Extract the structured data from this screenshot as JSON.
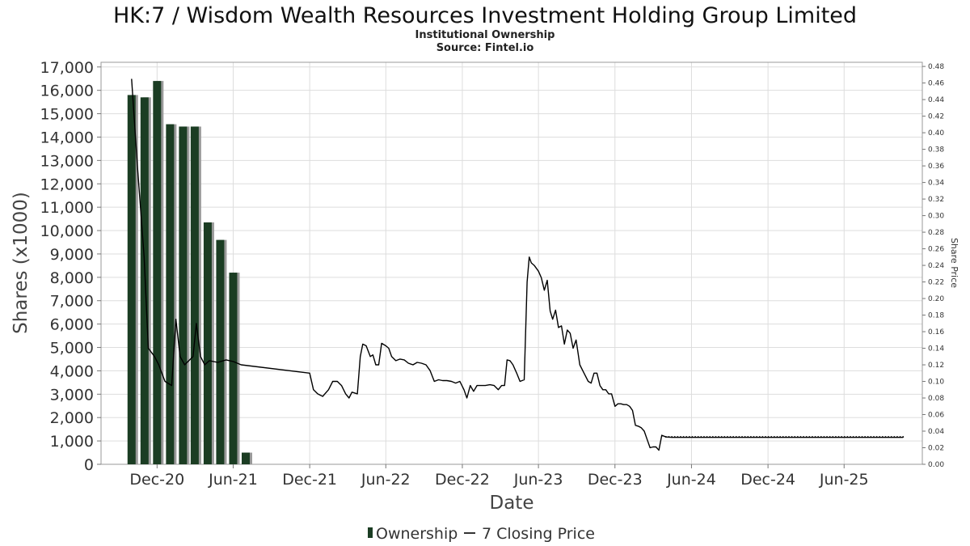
{
  "chart_data": {
    "type": "bar+line",
    "title": "HK:7 / Wisdom Wealth Resources Investment Holding Group Limited",
    "subtitle_lines": [
      "Institutional Ownership",
      "Source: Fintel.io"
    ],
    "xlabel": "Date",
    "ylabel_left": "Shares (x1000)",
    "ylabel_right": "Share Price",
    "x_range": [
      "2020-07-20",
      "2025-12-05"
    ],
    "ylim_left": [
      0,
      17200
    ],
    "ylim_right": [
      0,
      0.485
    ],
    "x_ticks": [
      {
        "date": "2020-12-01",
        "label": "Dec-20"
      },
      {
        "date": "2021-06-01",
        "label": "Jun-21"
      },
      {
        "date": "2021-12-01",
        "label": "Dec-21"
      },
      {
        "date": "2022-06-01",
        "label": "Jun-22"
      },
      {
        "date": "2022-12-01",
        "label": "Dec-22"
      },
      {
        "date": "2023-06-01",
        "label": "Jun-23"
      },
      {
        "date": "2023-12-01",
        "label": "Dec-23"
      },
      {
        "date": "2024-06-01",
        "label": "Jun-24"
      },
      {
        "date": "2024-12-01",
        "label": "Dec-24"
      },
      {
        "date": "2025-06-01",
        "label": "Jun-25"
      }
    ],
    "y_ticks_left": [
      "0",
      "1,000",
      "2,000",
      "3,000",
      "4,000",
      "5,000",
      "6,000",
      "7,000",
      "8,000",
      "9,000",
      "10,000",
      "11,000",
      "12,000",
      "13,000",
      "14,000",
      "15,000",
      "16,000",
      "17,000"
    ],
    "y_ticks_right": [
      "0.00",
      "0.02",
      "0.04",
      "0.06",
      "0.08",
      "0.10",
      "0.12",
      "0.14",
      "0.16",
      "0.18",
      "0.20",
      "0.22",
      "0.24",
      "0.26",
      "0.28",
      "0.30",
      "0.32",
      "0.34",
      "0.36",
      "0.38",
      "0.40",
      "0.42",
      "0.44",
      "0.46",
      "0.48"
    ],
    "grid": true,
    "legend": {
      "placement": "bottom-center",
      "entries": [
        {
          "label": "Ownership",
          "type": "bar",
          "color": "#1b3d23"
        },
        {
          "label": "7 Closing Price",
          "type": "line",
          "color": "#000000"
        }
      ]
    },
    "series": [
      {
        "name": "Ownership",
        "type": "bar",
        "color": "#1b3d23",
        "shadow_color": "#9a9a9a",
        "points": [
          {
            "x": "2020-10-01",
            "y": 15800
          },
          {
            "x": "2020-11-01",
            "y": 15700
          },
          {
            "x": "2020-12-01",
            "y": 16400
          },
          {
            "x": "2021-01-01",
            "y": 14550
          },
          {
            "x": "2021-02-01",
            "y": 14450
          },
          {
            "x": "2021-03-01",
            "y": 14450
          },
          {
            "x": "2021-04-01",
            "y": 10350
          },
          {
            "x": "2021-05-01",
            "y": 9600
          },
          {
            "x": "2021-06-01",
            "y": 8200
          },
          {
            "x": "2021-07-01",
            "y": 500
          }
        ]
      },
      {
        "name": "7 Closing Price",
        "type": "line",
        "color": "#000000",
        "points": [
          [
            "2020-10-01",
            0.465
          ],
          [
            "2020-10-15",
            0.36
          ],
          [
            "2020-10-31",
            0.25
          ],
          [
            "2020-11-10",
            0.14
          ],
          [
            "2020-11-25",
            0.13
          ],
          [
            "2020-12-05",
            0.12
          ],
          [
            "2020-12-20",
            0.1
          ],
          [
            "2021-01-05",
            0.095
          ],
          [
            "2021-01-15",
            0.175
          ],
          [
            "2021-01-25",
            0.13
          ],
          [
            "2021-02-05",
            0.12
          ],
          [
            "2021-02-25",
            0.13
          ],
          [
            "2021-03-05",
            0.17
          ],
          [
            "2021-03-15",
            0.13
          ],
          [
            "2021-03-25",
            0.12
          ],
          [
            "2021-04-05",
            0.125
          ],
          [
            "2021-04-25",
            0.123
          ],
          [
            "2021-05-15",
            0.126
          ],
          [
            "2021-06-01",
            0.124
          ],
          [
            "2021-06-20",
            0.12
          ],
          [
            "2021-12-01",
            0.11
          ],
          [
            "2021-12-10",
            0.09
          ],
          [
            "2021-12-20",
            0.085
          ],
          [
            "2022-01-01",
            0.082
          ],
          [
            "2022-01-15",
            0.09
          ],
          [
            "2022-01-25",
            0.1
          ],
          [
            "2022-02-05",
            0.1
          ],
          [
            "2022-02-15",
            0.095
          ],
          [
            "2022-02-25",
            0.085
          ],
          [
            "2022-03-05",
            0.08
          ],
          [
            "2022-03-12",
            0.087
          ],
          [
            "2022-03-25",
            0.085
          ],
          [
            "2022-04-01",
            0.13
          ],
          [
            "2022-04-07",
            0.145
          ],
          [
            "2022-04-15",
            0.143
          ],
          [
            "2022-04-25",
            0.13
          ],
          [
            "2022-05-01",
            0.132
          ],
          [
            "2022-05-08",
            0.12
          ],
          [
            "2022-05-15",
            0.12
          ],
          [
            "2022-05-22",
            0.146
          ],
          [
            "2022-06-01",
            0.143
          ],
          [
            "2022-06-08",
            0.14
          ],
          [
            "2022-06-15",
            0.13
          ],
          [
            "2022-06-25",
            0.125
          ],
          [
            "2022-07-05",
            0.127
          ],
          [
            "2022-07-15",
            0.126
          ],
          [
            "2022-07-25",
            0.122
          ],
          [
            "2022-08-05",
            0.12
          ],
          [
            "2022-08-15",
            0.123
          ],
          [
            "2022-08-25",
            0.122
          ],
          [
            "2022-09-05",
            0.12
          ],
          [
            "2022-09-15",
            0.113
          ],
          [
            "2022-09-25",
            0.1
          ],
          [
            "2022-10-05",
            0.102
          ],
          [
            "2022-10-15",
            0.101
          ],
          [
            "2022-10-25",
            0.101
          ],
          [
            "2022-11-05",
            0.1
          ],
          [
            "2022-11-15",
            0.098
          ],
          [
            "2022-11-25",
            0.1
          ],
          [
            "2022-12-05",
            0.09
          ],
          [
            "2022-12-12",
            0.08
          ],
          [
            "2022-12-20",
            0.095
          ],
          [
            "2022-12-28",
            0.088
          ],
          [
            "2023-01-05",
            0.095
          ],
          [
            "2023-01-15",
            0.095
          ],
          [
            "2023-01-25",
            0.095
          ],
          [
            "2023-02-05",
            0.096
          ],
          [
            "2023-02-15",
            0.095
          ],
          [
            "2023-02-25",
            0.09
          ],
          [
            "2023-03-05",
            0.095
          ],
          [
            "2023-03-12",
            0.095
          ],
          [
            "2023-03-18",
            0.126
          ],
          [
            "2023-03-25",
            0.125
          ],
          [
            "2023-04-01",
            0.12
          ],
          [
            "2023-04-10",
            0.11
          ],
          [
            "2023-04-18",
            0.1
          ],
          [
            "2023-04-28",
            0.102
          ],
          [
            "2023-05-05",
            0.22
          ],
          [
            "2023-05-10",
            0.25
          ],
          [
            "2023-05-15",
            0.243
          ],
          [
            "2023-05-22",
            0.24
          ],
          [
            "2023-06-01",
            0.233
          ],
          [
            "2023-06-08",
            0.225
          ],
          [
            "2023-06-15",
            0.21
          ],
          [
            "2023-06-22",
            0.222
          ],
          [
            "2023-06-29",
            0.185
          ],
          [
            "2023-07-05",
            0.175
          ],
          [
            "2023-07-12",
            0.186
          ],
          [
            "2023-07-19",
            0.165
          ],
          [
            "2023-07-26",
            0.167
          ],
          [
            "2023-08-02",
            0.145
          ],
          [
            "2023-08-09",
            0.162
          ],
          [
            "2023-08-16",
            0.158
          ],
          [
            "2023-08-23",
            0.14
          ],
          [
            "2023-08-30",
            0.15
          ],
          [
            "2023-09-08",
            0.12
          ],
          [
            "2023-09-18",
            0.11
          ],
          [
            "2023-09-28",
            0.1
          ],
          [
            "2023-10-05",
            0.098
          ],
          [
            "2023-10-12",
            0.11
          ],
          [
            "2023-10-19",
            0.11
          ],
          [
            "2023-10-26",
            0.095
          ],
          [
            "2023-11-02",
            0.09
          ],
          [
            "2023-11-09",
            0.09
          ],
          [
            "2023-11-16",
            0.085
          ],
          [
            "2023-11-23",
            0.085
          ],
          [
            "2023-12-01",
            0.07
          ],
          [
            "2023-12-08",
            0.073
          ],
          [
            "2023-12-15",
            0.073
          ],
          [
            "2023-12-22",
            0.072
          ],
          [
            "2023-12-29",
            0.072
          ],
          [
            "2024-01-05",
            0.07
          ],
          [
            "2024-01-12",
            0.065
          ],
          [
            "2024-01-19",
            0.047
          ],
          [
            "2024-01-26",
            0.046
          ],
          [
            "2024-02-02",
            0.044
          ],
          [
            "2024-02-09",
            0.04
          ],
          [
            "2024-02-16",
            0.03
          ],
          [
            "2024-02-23",
            0.02
          ],
          [
            "2024-03-01",
            0.021
          ],
          [
            "2024-03-08",
            0.021
          ],
          [
            "2024-03-15",
            0.017
          ],
          [
            "2024-03-22",
            0.035
          ],
          [
            "2024-04-01",
            0.033
          ],
          [
            "2024-04-15",
            0.0325
          ],
          [
            "2024-06-01",
            0.0325
          ],
          [
            "2024-09-01",
            0.0325
          ],
          [
            "2024-12-01",
            0.0325
          ],
          [
            "2025-03-01",
            0.0325
          ],
          [
            "2025-06-01",
            0.0325
          ],
          [
            "2025-09-01",
            0.0325
          ],
          [
            "2025-10-20",
            0.0325
          ]
        ]
      }
    ]
  }
}
